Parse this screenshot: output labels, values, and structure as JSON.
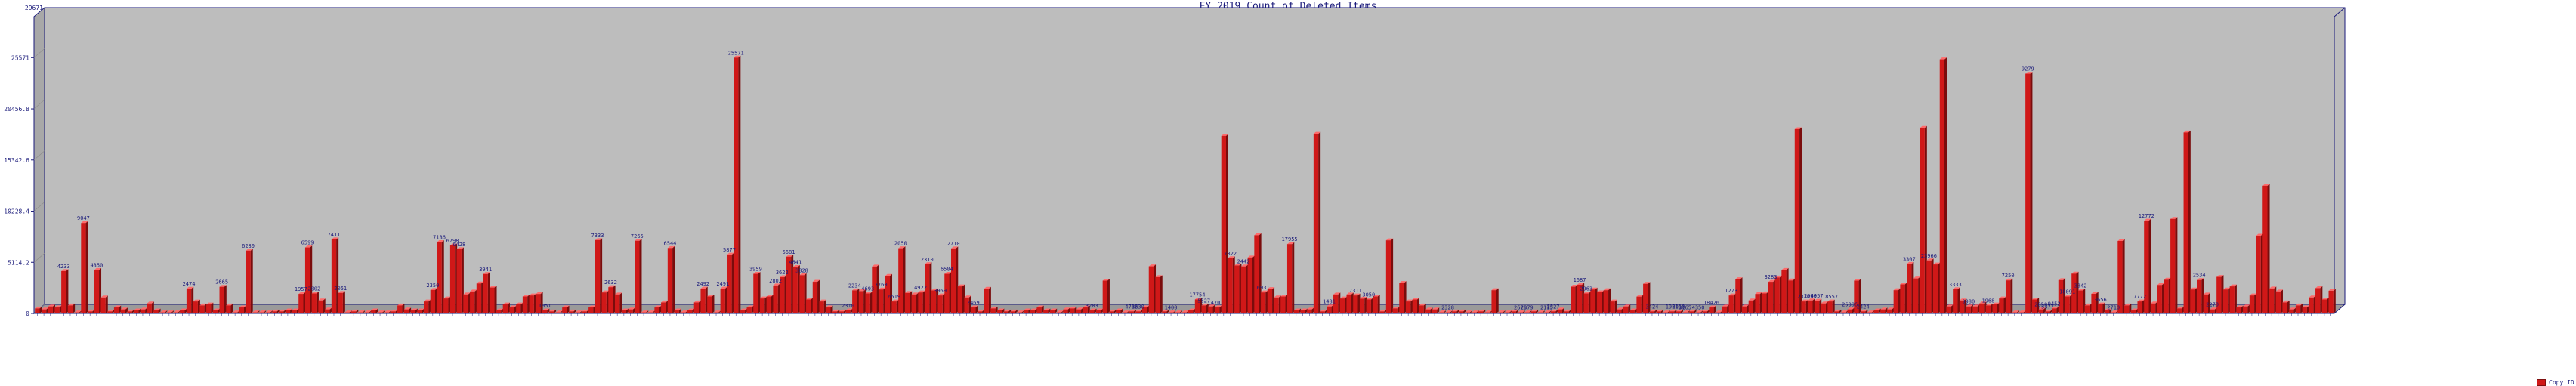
{
  "chart_data": {
    "type": "bar",
    "title": "FY 2019 Count of Deleted Items",
    "xlabel": "",
    "ylabel": "",
    "ylim": [
      0,
      29671
    ],
    "yticks": [
      "0",
      "5114.2",
      "10228.4",
      "15342.6",
      "20456.8",
      "25571"
    ],
    "grid": false,
    "legend": "bottom-right",
    "colors": {
      "bar": "#d01818",
      "plot_bg": "#bdbdbd",
      "wall": "#c8c8c8",
      "text": "#1a1a7a"
    },
    "icons": [
      "3d-bar-chart"
    ],
    "series": [
      {
        "name": "Copy ID",
        "values": [
          500,
          400,
          700,
          600,
          4233,
          800,
          100,
          9047,
          200,
          4350,
          1600,
          200,
          600,
          400,
          200,
          300,
          400,
          1000,
          300,
          100,
          100,
          100,
          300,
          2474,
          1200,
          800,
          900,
          300,
          2665,
          800,
          100,
          600,
          6280,
          100,
          100,
          100,
          200,
          200,
          300,
          300,
          1957,
          6599,
          2002,
          1300,
          400,
          7411,
          2051,
          100,
          200,
          100,
          100,
          300,
          100,
          100,
          200,
          800,
          400,
          300,
          300,
          1200,
          2350,
          7136,
          1500,
          6798,
          6428,
          1900,
          2200,
          3000,
          3941,
          2600,
          300,
          900,
          600,
          900,
          1700,
          1800,
          1951,
          300,
          200,
          100,
          600,
          200,
          100,
          200,
          600,
          7333,
          2100,
          2632,
          1900,
          300,
          400,
          7265,
          100,
          100,
          600,
          1100,
          6544,
          300,
          100,
          300,
          1100,
          2492,
          1700,
          100,
          2491,
          5877,
          25571,
          300,
          600,
          3959,
          1500,
          1700,
          2802,
          3622,
          5681,
          4641,
          3828,
          1400,
          3167,
          1200,
          600,
          200,
          200,
          300,
          2310,
          2234,
          2000,
          4693,
          2400,
          3760,
          1200,
          6519,
          2050,
          1900,
          2100,
          4922,
          2310,
          1800,
          3959,
          6504,
          2710,
          1600,
          600,
          200,
          2469,
          500,
          300,
          200,
          200,
          100,
          300,
          300,
          600,
          300,
          300,
          100,
          400,
          500,
          400,
          600,
          300,
          300,
          3283,
          200,
          300,
          100,
          200,
          200,
          600,
          4712,
          3630,
          200,
          100,
          100,
          100,
          300,
          1400,
          800,
          700,
          600,
          17754,
          5527,
          4800,
          4701,
          5600,
          7822,
          2100,
          2442,
          1600,
          1700,
          6931,
          300,
          300,
          400,
          17955,
          200,
          700,
          1900,
          1500,
          1900,
          1800,
          1481,
          1400,
          1700,
          200,
          7311,
          500,
          3050,
          1200,
          1400,
          800,
          400,
          400,
          100,
          100,
          200,
          200,
          100,
          100,
          200,
          100,
          2328,
          100,
          100,
          200,
          100,
          100,
          200,
          100,
          100,
          200,
          400,
          200,
          2676,
          2879,
          2000,
          2400,
          2115,
          2327,
          1200,
          400,
          700,
          300,
          1687,
          2963,
          200,
          200,
          100,
          200,
          200,
          100,
          200,
          100,
          200,
          600,
          100,
          700,
          1800,
          3424,
          700,
          1300,
          1951,
          2010,
          3165,
          3600,
          4350,
          3300,
          18426,
          1200,
          1300,
          1273,
          1000,
          1200,
          200,
          100,
          400,
          3283,
          200,
          100,
          300,
          400,
          400,
          2330,
          2906,
          4957,
          3500,
          18557,
          5300,
          4900,
          25396,
          700,
          2424,
          1300,
          700,
          700,
          1000,
          800,
          900,
          1500,
          3307,
          100,
          100,
          23966,
          1400,
          400,
          200,
          500,
          3333,
          1700,
          3980,
          2300,
          800,
          1968,
          900,
          300,
          100,
          7250,
          800,
          300,
          1200,
          9279,
          1000,
          2850,
          3377,
          9452,
          500,
          18091,
          2400,
          3342,
          1900,
          400,
          3656,
          2400,
          2710,
          600,
          700,
          1800,
          7772,
          12772,
          2500,
          2200,
          1100,
          400,
          800,
          600,
          1600,
          2534,
          1400,
          2270
        ]
      }
    ],
    "data_labels": [
      {
        "i": 4,
        "text": "4233"
      },
      {
        "i": 7,
        "text": "9047"
      },
      {
        "i": 9,
        "text": "4350"
      },
      {
        "i": 23,
        "text": "2474"
      },
      {
        "i": 28,
        "text": "2665"
      },
      {
        "i": 32,
        "text": "6280"
      },
      {
        "i": 40,
        "text": "1957"
      },
      {
        "i": 41,
        "text": "6599"
      },
      {
        "i": 42,
        "text": "2002"
      },
      {
        "i": 45,
        "text": "7411"
      },
      {
        "i": 46,
        "text": "2051"
      },
      {
        "i": 60,
        "text": "2350"
      },
      {
        "i": 61,
        "text": "7136"
      },
      {
        "i": 63,
        "text": "6798"
      },
      {
        "i": 64,
        "text": "6428"
      },
      {
        "i": 68,
        "text": "3941"
      },
      {
        "i": 77,
        "text": "1951"
      },
      {
        "i": 85,
        "text": "7333"
      },
      {
        "i": 87,
        "text": "2632"
      },
      {
        "i": 91,
        "text": "7265"
      },
      {
        "i": 96,
        "text": "6544"
      },
      {
        "i": 101,
        "text": "2492"
      },
      {
        "i": 104,
        "text": "2491"
      },
      {
        "i": 105,
        "text": "5877"
      },
      {
        "i": 106,
        "text": "25571"
      },
      {
        "i": 109,
        "text": "3959"
      },
      {
        "i": 112,
        "text": "2802"
      },
      {
        "i": 113,
        "text": "3622"
      },
      {
        "i": 114,
        "text": "5681"
      },
      {
        "i": 115,
        "text": "4641"
      },
      {
        "i": 116,
        "text": "3828"
      },
      {
        "i": 123,
        "text": "2310"
      },
      {
        "i": 124,
        "text": "2234"
      },
      {
        "i": 126,
        "text": "4693"
      },
      {
        "i": 128,
        "text": "3760"
      },
      {
        "i": 130,
        "text": "6519"
      },
      {
        "i": 131,
        "text": "2050"
      },
      {
        "i": 134,
        "text": "4922"
      },
      {
        "i": 135,
        "text": "2310"
      },
      {
        "i": 137,
        "text": "3959"
      },
      {
        "i": 138,
        "text": "6504"
      },
      {
        "i": 139,
        "text": "2710"
      },
      {
        "i": 142,
        "text": "2469"
      },
      {
        "i": 160,
        "text": "3283"
      },
      {
        "i": 166,
        "text": "4712"
      },
      {
        "i": 167,
        "text": "3630"
      },
      {
        "i": 172,
        "text": "1400"
      },
      {
        "i": 176,
        "text": "17754"
      },
      {
        "i": 177,
        "text": "5527"
      },
      {
        "i": 179,
        "text": "4701"
      },
      {
        "i": 181,
        "text": "7822"
      },
      {
        "i": 183,
        "text": "2442"
      },
      {
        "i": 186,
        "text": "6931"
      },
      {
        "i": 190,
        "text": "17955"
      },
      {
        "i": 196,
        "text": "1481"
      },
      {
        "i": 200,
        "text": "7311"
      },
      {
        "i": 202,
        "text": "3050"
      },
      {
        "i": 214,
        "text": "2328"
      },
      {
        "i": 225,
        "text": "2676"
      },
      {
        "i": 226,
        "text": "2879"
      },
      {
        "i": 229,
        "text": "2115"
      },
      {
        "i": 230,
        "text": "2327"
      },
      {
        "i": 234,
        "text": "1687"
      },
      {
        "i": 235,
        "text": "2963"
      },
      {
        "i": 245,
        "text": "3424"
      },
      {
        "i": 248,
        "text": "1951"
      },
      {
        "i": 249,
        "text": "2010"
      },
      {
        "i": 250,
        "text": "3165"
      },
      {
        "i": 252,
        "text": "4350"
      },
      {
        "i": 254,
        "text": "18426"
      },
      {
        "i": 257,
        "text": "1273"
      },
      {
        "i": 263,
        "text": "3283"
      },
      {
        "i": 268,
        "text": "2330"
      },
      {
        "i": 269,
        "text": "2906"
      },
      {
        "i": 270,
        "text": "4957"
      },
      {
        "i": 272,
        "text": "18557"
      },
      {
        "i": 275,
        "text": "25396"
      },
      {
        "i": 277,
        "text": "2424"
      },
      {
        "i": 284,
        "text": "3307"
      },
      {
        "i": 287,
        "text": "23966"
      },
      {
        "i": 291,
        "text": "3333"
      },
      {
        "i": 293,
        "text": "3980"
      },
      {
        "i": 296,
        "text": "1968"
      },
      {
        "i": 299,
        "text": "7250"
      },
      {
        "i": 302,
        "text": "9279"
      },
      {
        "i": 304,
        "text": "2850"
      },
      {
        "i": 305,
        "text": "3377"
      },
      {
        "i": 306,
        "text": "9452"
      },
      {
        "i": 308,
        "text": "18091"
      },
      {
        "i": 310,
        "text": "3342"
      },
      {
        "i": 313,
        "text": "3656"
      },
      {
        "i": 315,
        "text": "2710"
      },
      {
        "i": 319,
        "text": "7772"
      },
      {
        "i": 320,
        "text": "12772"
      },
      {
        "i": 328,
        "text": "2534"
      },
      {
        "i": 330,
        "text": "2270"
      }
    ]
  }
}
